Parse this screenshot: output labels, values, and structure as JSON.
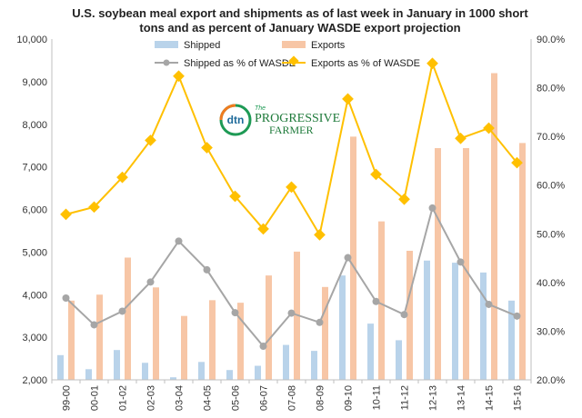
{
  "chart_data": {
    "type": "bar",
    "title_lines": [
      "U.S. soybean meal export and shipments as of last week in January in 1000 short",
      "tons  and as percent of January WASDE  export projection"
    ],
    "categories": [
      "99-00",
      "00-01",
      "01-02",
      "02-03",
      "03-04",
      "04-05",
      "05-06",
      "06-07",
      "07-08",
      "08-09",
      "09-10",
      "10-11",
      "11-12",
      "12-13",
      "13-14",
      "14-15",
      "15-16"
    ],
    "y_left": {
      "min": 2000,
      "max": 10000,
      "ticks": [
        "2,000",
        "3,000",
        "4,000",
        "5,000",
        "6,000",
        "7,000",
        "8,000",
        "9,000",
        "10,000"
      ]
    },
    "y_right": {
      "min": 20,
      "max": 90,
      "ticks": [
        "20.0%",
        "30.0%",
        "40.0%",
        "50.0%",
        "60.0%",
        "70.0%",
        "80.0%",
        "90.0%"
      ]
    },
    "grid": false,
    "legend_position": "top-left",
    "series": [
      {
        "name": "Shipped",
        "kind": "bar",
        "axis": "left",
        "color": "#b9d3ea",
        "values": [
          2580,
          2250,
          2700,
          2400,
          2060,
          2420,
          2230,
          2330,
          2820,
          2680,
          4450,
          3320,
          2930,
          4800,
          4750,
          4520,
          3860
        ]
      },
      {
        "name": "Exports",
        "kind": "bar",
        "axis": "left",
        "color": "#f7c6a6",
        "values": [
          3860,
          4000,
          4870,
          4170,
          3500,
          3870,
          3810,
          4450,
          5010,
          4180,
          7710,
          5720,
          5030,
          7440,
          7440,
          9200,
          7560
        ]
      },
      {
        "name": "Shipped as % of WASDE",
        "kind": "line",
        "axis": "right",
        "color": "#a6a6a6",
        "marker": "circle",
        "values": [
          36.8,
          31.3,
          34.1,
          40.1,
          48.5,
          42.6,
          33.8,
          26.9,
          33.7,
          31.8,
          45.1,
          36.1,
          33.4,
          55.3,
          44.2,
          35.5,
          33.1
        ]
      },
      {
        "name": "Exports as % of WASDE",
        "kind": "line",
        "axis": "right",
        "color": "#ffc000",
        "marker": "diamond",
        "values": [
          54.0,
          55.5,
          61.6,
          69.2,
          82.4,
          67.7,
          57.7,
          51.0,
          59.6,
          49.8,
          77.7,
          62.2,
          57.1,
          85.0,
          69.6,
          71.7,
          64.6
        ]
      }
    ]
  },
  "logo": {
    "mark": "dtn",
    "wordmark_top": "The",
    "wordmark_main": "PROGRESSIVE",
    "wordmark_sub": "FARMER"
  }
}
